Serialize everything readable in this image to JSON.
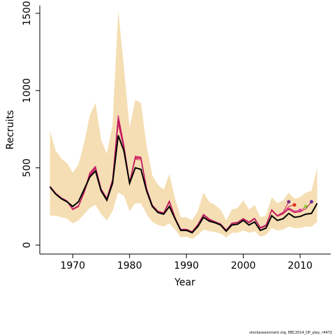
{
  "chart_data": {
    "type": "line",
    "xlabel": "Year",
    "ylabel": "Recruits",
    "footer": "stockassessment.org, EBC2014_DP_play, r4472",
    "xlim": [
      1964.2,
      2015.4
    ],
    "ylim": [
      -58,
      1550
    ],
    "xticks": [
      1970,
      1980,
      1990,
      2000,
      2010
    ],
    "yticks": [
      0,
      500,
      1000,
      1500
    ],
    "band_color": "#f5deb3",
    "x": [
      1966,
      1967,
      1968,
      1969,
      1970,
      1971,
      1972,
      1973,
      1974,
      1975,
      1976,
      1977,
      1978,
      1979,
      1980,
      1981,
      1982,
      1983,
      1984,
      1985,
      1986,
      1987,
      1988,
      1989,
      1990,
      1991,
      1992,
      1993,
      1994,
      1995,
      1996,
      1997,
      1998,
      1999,
      2000,
      2001,
      2002,
      2003,
      2004,
      2005,
      2006,
      2007,
      2008,
      2009,
      2010,
      2011,
      2012,
      2013
    ],
    "upper": [
      740,
      610,
      560,
      530,
      470,
      520,
      660,
      840,
      920,
      680,
      590,
      780,
      1520,
      1150,
      760,
      940,
      920,
      640,
      450,
      390,
      360,
      460,
      300,
      180,
      180,
      160,
      220,
      340,
      280,
      260,
      230,
      160,
      230,
      240,
      290,
      230,
      260,
      180,
      190,
      310,
      270,
      290,
      340,
      300,
      310,
      340,
      350,
      500
    ],
    "lower": [
      190,
      190,
      180,
      170,
      140,
      160,
      200,
      240,
      260,
      200,
      160,
      220,
      340,
      320,
      220,
      270,
      270,
      200,
      150,
      130,
      120,
      140,
      100,
      50,
      55,
      40,
      65,
      100,
      90,
      85,
      75,
      50,
      80,
      80,
      95,
      80,
      90,
      55,
      65,
      110,
      95,
      100,
      120,
      110,
      110,
      120,
      120,
      150
    ],
    "series": [
      {
        "color": "#d4145a",
        "point_color": "#7b2d8e",
        "values": [
          380,
          335,
          305,
          285,
          230,
          250,
          340,
          450,
          500,
          360,
          300,
          420,
          830,
          640,
          400,
          560,
          560,
          360,
          255,
          215,
          205,
          280,
          175,
          100,
          100,
          85,
          130,
          195,
          165,
          150,
          135,
          95,
          140,
          145,
          170,
          145,
          170,
          110,
          125,
          230,
          190,
          210,
          280,
          null,
          null,
          null,
          null,
          null
        ]
      },
      {
        "color": "#e8275a",
        "point_color": "#e8271e",
        "values": [
          378,
          333,
          303,
          283,
          232,
          252,
          338,
          460,
          505,
          355,
          298,
          415,
          800,
          630,
          405,
          570,
          565,
          365,
          258,
          218,
          208,
          285,
          178,
          102,
          102,
          87,
          132,
          198,
          168,
          152,
          137,
          97,
          142,
          147,
          172,
          148,
          172,
          112,
          128,
          225,
          188,
          205,
          250,
          260,
          null,
          null,
          null,
          null
        ]
      },
      {
        "color": "#cc2277",
        "point_color": "#e040c0",
        "values": [
          382,
          337,
          307,
          287,
          235,
          255,
          345,
          470,
          510,
          365,
          305,
          425,
          840,
          650,
          410,
          575,
          570,
          368,
          260,
          220,
          210,
          288,
          180,
          103,
          103,
          88,
          133,
          200,
          170,
          153,
          138,
          98,
          143,
          148,
          173,
          150,
          175,
          115,
          130,
          228,
          192,
          212,
          240,
          220,
          225,
          null,
          null,
          null
        ]
      },
      {
        "color": "#dd4466",
        "point_color": "#8fd13a",
        "values": [
          376,
          331,
          301,
          281,
          228,
          248,
          335,
          445,
          495,
          350,
          295,
          410,
          780,
          620,
          398,
          555,
          550,
          358,
          252,
          213,
          203,
          275,
          172,
          99,
          99,
          84,
          128,
          192,
          162,
          148,
          133,
          94,
          138,
          143,
          168,
          143,
          168,
          108,
          122,
          222,
          185,
          200,
          235,
          215,
          220,
          250,
          null,
          null
        ]
      },
      {
        "color": "#b0105a",
        "point_color": "#6a2c9a",
        "values": [
          379,
          334,
          304,
          284,
          231,
          251,
          342,
          455,
          502,
          358,
          302,
          418,
          810,
          635,
          402,
          565,
          558,
          362,
          256,
          216,
          206,
          282,
          176,
          101,
          101,
          86,
          131,
          196,
          166,
          151,
          136,
          96,
          141,
          146,
          171,
          146,
          171,
          111,
          126,
          226,
          189,
          207,
          230,
          210,
          215,
          235,
          280,
          null
        ]
      },
      {
        "color": "#000000",
        "width": 2,
        "values": [
          375,
          330,
          300,
          280,
          250,
          280,
          360,
          440,
          480,
          350,
          290,
          400,
          710,
          610,
          400,
          500,
          490,
          350,
          250,
          210,
          200,
          250,
          170,
          95,
          95,
          80,
          120,
          180,
          155,
          145,
          130,
          90,
          130,
          135,
          160,
          130,
          150,
          95,
          110,
          190,
          160,
          170,
          205,
          180,
          185,
          200,
          205,
          270
        ]
      }
    ]
  }
}
